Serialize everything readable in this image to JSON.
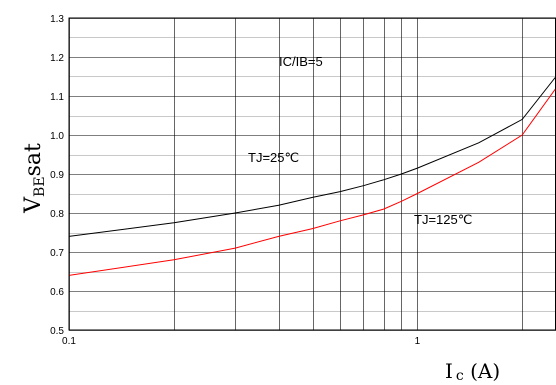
{
  "chart_data": {
    "type": "line",
    "title": "",
    "xscale": "log",
    "xlim": [
      0.1,
      2.5
    ],
    "ylim": [
      0.5,
      1.3
    ],
    "grid": true,
    "ylabel": {
      "main": "V",
      "sub": "BE",
      "tail": "sat"
    },
    "xlabel": {
      "main": "I",
      "sub": "c",
      "tail": " (A)"
    },
    "y_ticks": [
      "1.3",
      "1.2",
      "1.1",
      "1.0",
      "0.9",
      "0.8",
      "0.7",
      "0.6",
      "0.5"
    ],
    "x_ticks": [
      "0.1",
      "1"
    ],
    "annotations": [
      "IC/IB=5",
      "TJ=25℃",
      "TJ=125℃"
    ],
    "series": [
      {
        "color": "#000000",
        "x": [
          0.1,
          0.2,
          0.3,
          0.4,
          0.5,
          0.6,
          0.7,
          0.8,
          0.9,
          1.0,
          1.5,
          2.0,
          2.5
        ],
        "y": [
          0.74,
          0.775,
          0.8,
          0.82,
          0.84,
          0.855,
          0.87,
          0.885,
          0.9,
          0.915,
          0.98,
          1.04,
          1.15
        ]
      },
      {
        "color": "#ff0000",
        "x": [
          0.1,
          0.2,
          0.3,
          0.4,
          0.5,
          0.6,
          0.7,
          0.8,
          0.9,
          1.0,
          1.5,
          2.0,
          2.5
        ],
        "y": [
          0.64,
          0.68,
          0.71,
          0.74,
          0.76,
          0.78,
          0.795,
          0.81,
          0.83,
          0.85,
          0.93,
          1.0,
          1.12
        ]
      }
    ]
  }
}
